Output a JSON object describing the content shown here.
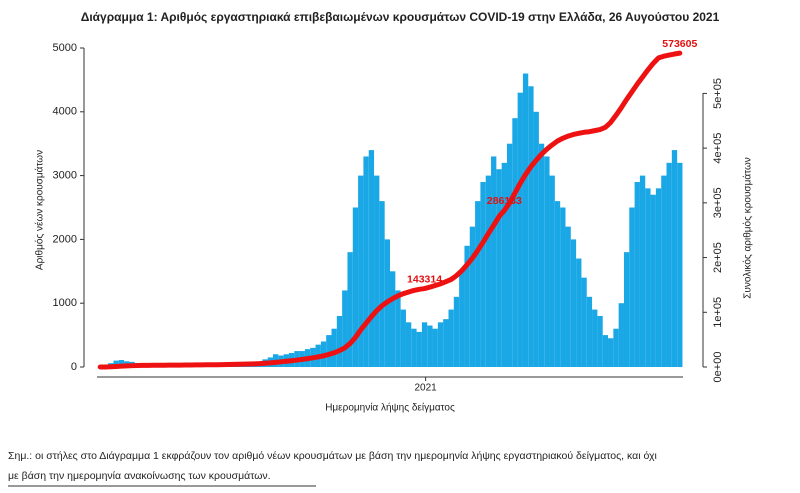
{
  "chart_data": {
    "type": "bar",
    "title": "Διάγραμμα 1: Αριθμός εργαστηριακά επιβεβαιωμένων κρουσμάτων COVID-19 στην Ελλάδα, 26 Αυγούστου 2021",
    "xlabel": "Ημερομηνία λήψης δείγματος",
    "ylabel": "Αριθμός νέων κρουσμάτων",
    "y2label": "Συνολικός αριθμός κρουσμάτων",
    "note": [
      "Σημ.: οι στήλες στο Διάγραμμα 1 εκφράζουν τον αριθμό νέων κρουσμάτων με βάση την ημερομηνία λήψης εργαστηριακού δείγματος, και όχι",
      "με βάση την ημερομηνία ανακοίνωσης των κρουσμάτων."
    ],
    "x": [
      0,
      5,
      10,
      15,
      20,
      25,
      30,
      35,
      40,
      45,
      50,
      55,
      60,
      65,
      70,
      75,
      80,
      85,
      90,
      95,
      100,
      105,
      110,
      115,
      120,
      125,
      130,
      135,
      140,
      145,
      150,
      155,
      160,
      165,
      170,
      175,
      180,
      185,
      190,
      195,
      200,
      205,
      210,
      215,
      220,
      225,
      230,
      235,
      240,
      245,
      250,
      255,
      260,
      265,
      270,
      275,
      280,
      285,
      290,
      295,
      300,
      305,
      310,
      315,
      320,
      325,
      330,
      335,
      340,
      345,
      350,
      355,
      360,
      365,
      370,
      375,
      380,
      385,
      390,
      395,
      400,
      405,
      410,
      415,
      420,
      425,
      430,
      435,
      440,
      445,
      450,
      455,
      460,
      465,
      470,
      475,
      480,
      485,
      490,
      495,
      500,
      505,
      510,
      515,
      520,
      525,
      530,
      535,
      540,
      545
    ],
    "xlim": [
      -3,
      548
    ],
    "xticks": [
      {
        "value": 306,
        "label": "2021"
      }
    ],
    "ylim": [
      0,
      5000
    ],
    "yticks": [
      0,
      1000,
      2000,
      3000,
      4000,
      5000
    ],
    "y2lim": [
      0,
      583000
    ],
    "y2ticks": [
      {
        "value": 0,
        "label": "0e+00"
      },
      {
        "value": 100000,
        "label": "1e+05"
      },
      {
        "value": 200000,
        "label": "2e+05"
      },
      {
        "value": 300000,
        "label": "3e+05"
      },
      {
        "value": 400000,
        "label": "4e+05"
      },
      {
        "value": 500000,
        "label": "5e+05"
      }
    ],
    "series": [
      {
        "type": "bar",
        "color": "#1aa7e6",
        "values": [
          5,
          20,
          60,
          100,
          110,
          90,
          80,
          60,
          40,
          30,
          20,
          15,
          15,
          10,
          10,
          15,
          15,
          20,
          20,
          25,
          20,
          25,
          25,
          30,
          35,
          35,
          40,
          40,
          50,
          60,
          80,
          120,
          150,
          200,
          180,
          200,
          220,
          250,
          250,
          280,
          300,
          350,
          400,
          500,
          600,
          800,
          1200,
          1800,
          2500,
          3000,
          3300,
          3400,
          3000,
          2600,
          2000,
          1500,
          1200,
          900,
          700,
          600,
          550,
          700,
          650,
          600,
          700,
          750,
          900,
          1100,
          1500,
          1900,
          2200,
          2600,
          2900,
          3000,
          3300,
          3100,
          3200,
          3500,
          3900,
          4300,
          4600,
          4400,
          4000,
          3500,
          3300,
          3000,
          2600,
          2500,
          2200,
          2000,
          1700,
          1400,
          1100,
          900,
          800,
          500,
          450,
          600,
          1000,
          1800,
          2500,
          2900,
          3000,
          2800,
          2700,
          2800,
          3000,
          3200,
          3400,
          3200
        ]
      },
      {
        "type": "line",
        "axis": "y2",
        "color": "#ee1111",
        "values": [
          0,
          100,
          400,
          900,
          1500,
          2000,
          2400,
          2700,
          2900,
          3000,
          3100,
          3200,
          3300,
          3400,
          3450,
          3500,
          3600,
          3700,
          3800,
          3900,
          4000,
          4100,
          4200,
          4400,
          4600,
          4800,
          5000,
          5200,
          5500,
          5800,
          6200,
          6800,
          7500,
          8500,
          9500,
          10500,
          11500,
          12700,
          14000,
          15300,
          16800,
          18500,
          20500,
          23000,
          26000,
          30000,
          35000,
          43000,
          54000,
          68000,
          80000,
          92000,
          103000,
          112000,
          119000,
          125000,
          130000,
          134000,
          137000,
          140000,
          142000,
          143314,
          146000,
          149000,
          152000,
          156000,
          160000,
          167000,
          176000,
          187000,
          199000,
          213000,
          228000,
          244000,
          259000,
          275000,
          286133,
          300000,
          318000,
          336000,
          352000,
          366000,
          378000,
          389000,
          398000,
          406000,
          413000,
          418000,
          422000,
          425000,
          427000,
          429000,
          430000,
          432000,
          434000,
          438000,
          447000,
          460000,
          474000,
          489000,
          503000,
          517000,
          530000,
          543000,
          555000,
          565000,
          568000,
          570000,
          572000,
          573605
        ]
      }
    ],
    "annotations": [
      {
        "text": "143314",
        "x": 305,
        "y": 143314
      },
      {
        "text": "286133",
        "x": 380,
        "y": 286133
      },
      {
        "text": "573605",
        "x": 545,
        "y": 573605
      }
    ]
  }
}
